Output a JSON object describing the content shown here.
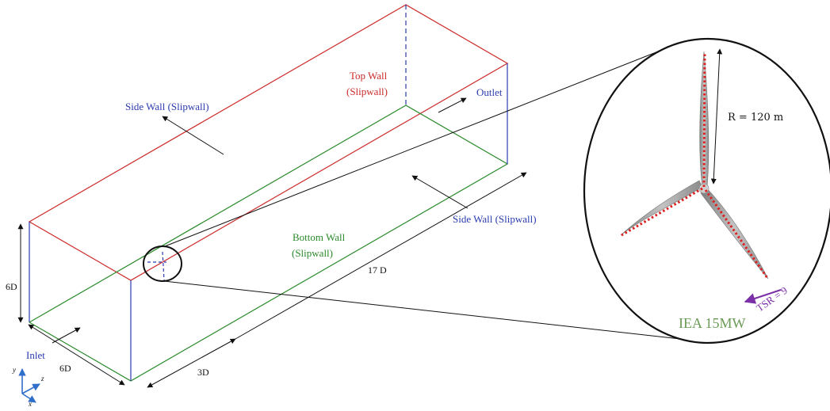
{
  "labels": {
    "side_wall_left": "Side Wall (Slipwall)",
    "side_wall_right": "Side Wall (Slipwall)",
    "top_wall_line1": "Top Wall",
    "top_wall_line2": "(Slipwall)",
    "outlet": "Outlet",
    "bottom_wall_line1": "Bottom Wall",
    "bottom_wall_line2": "(Slipwall)",
    "inlet": "Inlet",
    "dim_height": "6D",
    "dim_width": "6D",
    "dim_upstream": "3D",
    "dim_length": "17 D",
    "radius": "R = 120 m",
    "turbine_name": "IEA 15MW",
    "tsr": "TSR = 9",
    "axis_y": "y",
    "axis_z": "z",
    "axis_x": "x"
  },
  "colors": {
    "top_edges": "#cc2a2a",
    "bottom_edges": "#2a8a2a",
    "vertical_edges": "#2b3bb0",
    "rotor_outline": "#cc2a2a",
    "tsr_arrow": "#7b2fa8",
    "blade": "#a8a8a8"
  }
}
